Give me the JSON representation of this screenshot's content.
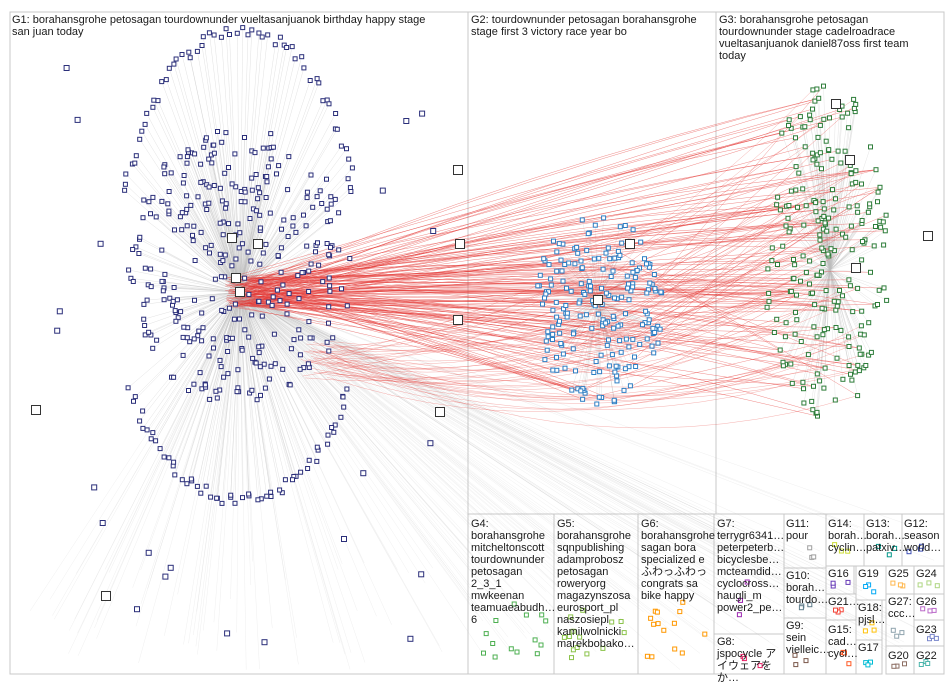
{
  "groups": [
    {
      "id": "G1",
      "label": "G1: borahansgrohe petosagan tourdownunder vueltasanjuanok birthday happy stage\nsan juan today",
      "color": "#2b2f7a"
    },
    {
      "id": "G2",
      "label": "G2: tourdownunder petosagan borahansgrohe\nstage first 3 victory race year bo",
      "color": "#2f7fc4"
    },
    {
      "id": "G3",
      "label": "G3: borahansgrohe petosagan\ntourdownunder stage cadelroadrace\nvueltasanjuanok daniel87oss first team\ntoday",
      "color": "#2e7d3a"
    },
    {
      "id": "G4",
      "label": "G4:\nborahansgrohe\nmitcheltonscott\ntourdownunder\npetosagan 2_3_1\nmwkeenan\nteamuaeabudh…\n6",
      "color": "#4caf50"
    },
    {
      "id": "G5",
      "label": "G5:\nborahansgrohe\nsqnpublishing\nadamprobosz\npetosagan\nroweryorg\nmagazynszosa\neurosport_pl\nnaszosiepl\nkamilwolnicki\nmarekbobako…",
      "color": "#8bc34a"
    },
    {
      "id": "G6",
      "label": "G6:\nborahansgrohe\nsagan bora\nspecialized e\nふわっふわっ\ncongrats sa\nbike happy",
      "color": "#ff9800"
    },
    {
      "id": "G7",
      "label": "G7:\nterrygr6341…\npeterpeterb…\nbicyclesbe…\nmcteamdid…\ncyclocross…\nhaugli_m\npower2_pe…",
      "color": "#9c27b0"
    },
    {
      "id": "G8",
      "label": "G8:\njspocycle ア\nイウェアをか…",
      "color": "#e91e63"
    },
    {
      "id": "G9",
      "label": "G9:\nsein\nvielleic…",
      "color": "#795548"
    },
    {
      "id": "G10",
      "label": "G10:\nborah…\ntourdo…",
      "color": "#607d8b"
    },
    {
      "id": "G11",
      "label": "G11:\npour",
      "color": "#9e9e9e"
    },
    {
      "id": "G12",
      "label": "G12:\nseason\nworld…",
      "color": "#3f51b5"
    },
    {
      "id": "G13",
      "label": "G13:\nborah…\npatxiv…",
      "color": "#009688"
    },
    {
      "id": "G14",
      "label": "G14:\nborah…\ncyclin…",
      "color": "#cddc39"
    },
    {
      "id": "G15",
      "label": "G15:\ncad…\ncycl…",
      "color": "#ff5722"
    },
    {
      "id": "G16",
      "label": "G16",
      "color": "#673ab7"
    },
    {
      "id": "G17",
      "label": "G17",
      "color": "#00bcd4"
    },
    {
      "id": "G18",
      "label": "G18:\npjsl…",
      "color": "#ffc107"
    },
    {
      "id": "G19",
      "label": "G19",
      "color": "#03a9f4"
    },
    {
      "id": "G20",
      "label": "G20",
      "color": "#8d6e63"
    },
    {
      "id": "G21",
      "label": "G21…",
      "color": "#f44336"
    },
    {
      "id": "G22",
      "label": "G22",
      "color": "#4db6ac"
    },
    {
      "id": "G23",
      "label": "G23",
      "color": "#7986cb"
    },
    {
      "id": "G24",
      "label": "G24",
      "color": "#aed581"
    },
    {
      "id": "G25",
      "label": "G25",
      "color": "#ffb74d"
    },
    {
      "id": "G26",
      "label": "G26",
      "color": "#ba68c8"
    },
    {
      "id": "G27",
      "label": "G27:\nccc…",
      "color": "#90a4ae"
    }
  ],
  "edge_colors": {
    "intra": "#bdbdbd",
    "cross": "#e53935"
  }
}
